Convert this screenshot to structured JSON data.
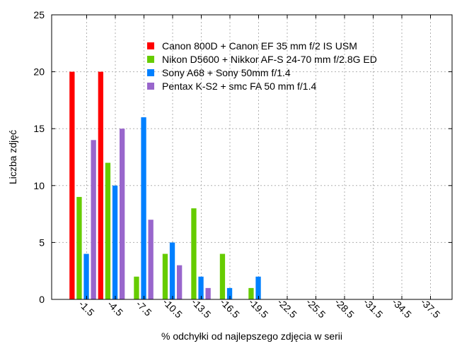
{
  "chart_data": {
    "type": "bar",
    "xlabel": "% odchyłki od najlepszego zdjęcia w serii",
    "ylabel": "Liczba zdjęć",
    "ylim": [
      0,
      25
    ],
    "yticks": [
      "0",
      "5",
      "10",
      "15",
      "20",
      "25"
    ],
    "categories": [
      "-1.5",
      "-4.5",
      "-7.5",
      "-10.5",
      "-13.5",
      "-16.5",
      "-19.5",
      "-22.5",
      "-25.5",
      "-28.5",
      "-31.5",
      "-34.5",
      "-37.5"
    ],
    "grid": true,
    "legend_position": "top-right",
    "series": [
      {
        "name": "Canon 800D + Canon EF 35 mm f/2 IS USM",
        "color": "#ff0000",
        "values": [
          20,
          20,
          0,
          0,
          0,
          0,
          0,
          0,
          0,
          0,
          0,
          0,
          0
        ]
      },
      {
        "name": "Nikon D5600 + Nikkor AF-S 24-70 mm f/2.8G ED",
        "color": "#66cc00",
        "values": [
          9,
          12,
          2,
          4,
          8,
          4,
          1,
          0,
          0,
          0,
          0,
          0,
          0
        ]
      },
      {
        "name": "Sony A68 + Sony 50mm f/1.4",
        "color": "#0080ff",
        "values": [
          4,
          10,
          16,
          5,
          2,
          1,
          2,
          0,
          0,
          0,
          0,
          0,
          0
        ]
      },
      {
        "name": "Pentax K-S2 + smc FA 50 mm f/1.4",
        "color": "#9966cc",
        "values": [
          14,
          15,
          7,
          3,
          1,
          0,
          0,
          0,
          0,
          0,
          0,
          0,
          0
        ]
      }
    ]
  }
}
